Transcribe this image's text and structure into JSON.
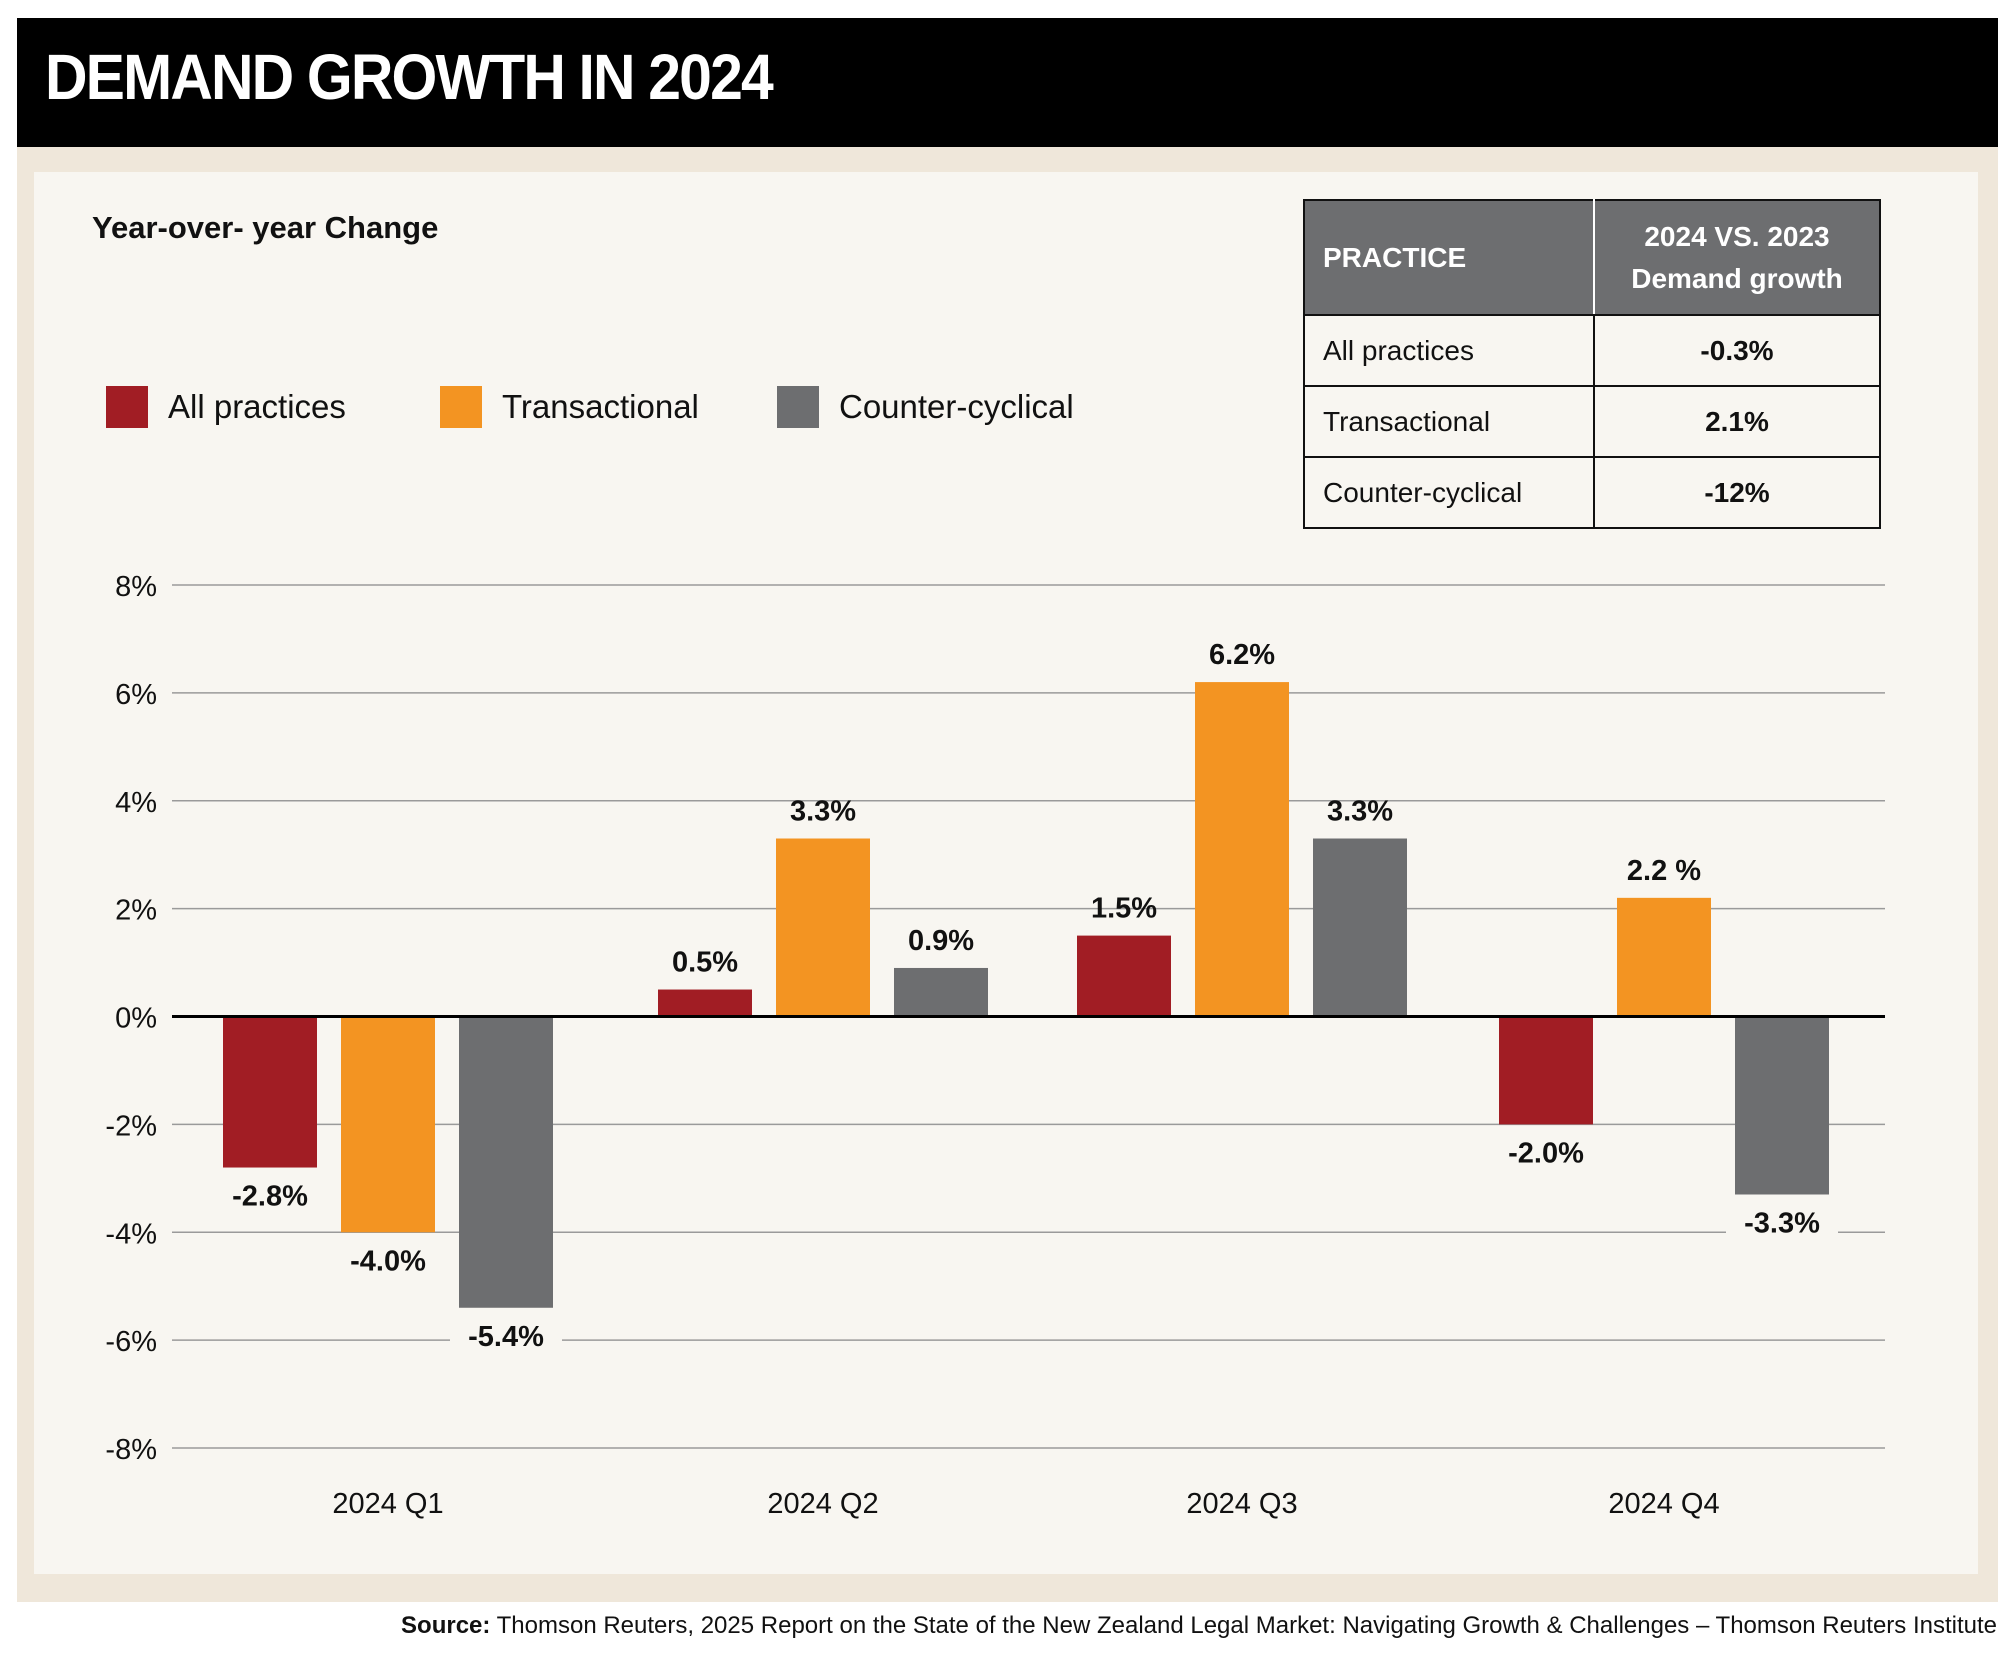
{
  "title": "DEMAND GROWTH IN 2024",
  "subtitle": "Year-over- year Change",
  "colors": {
    "all_practices": "#a11d24",
    "transactional": "#f39422",
    "counter_cyclical": "#6d6e70",
    "header_bg": "#000000",
    "panel_bg": "#f8f6f1",
    "frame_bg": "#efe7da"
  },
  "legend": [
    "All practices",
    "Transactional",
    "Counter-cyclical"
  ],
  "table": {
    "header_practice": "PRACTICE",
    "header_growth_line1": "2024 VS. 2023",
    "header_growth_line2": "Demand growth",
    "rows": [
      {
        "practice": "All practices",
        "value": "-0.3%"
      },
      {
        "practice": "Transactional",
        "value": "2.1%"
      },
      {
        "practice": "Counter-cyclical",
        "value": "-12%"
      }
    ]
  },
  "chart_data": {
    "type": "bar",
    "categories": [
      "2024 Q1",
      "2024 Q2",
      "2024 Q3",
      "2024 Q4"
    ],
    "series": [
      {
        "name": "All practices",
        "values": [
          -2.8,
          0.5,
          1.5,
          -2.0
        ],
        "labels": [
          "-2.8%",
          "0.5%",
          "1.5%",
          "-2.0%"
        ]
      },
      {
        "name": "Transactional",
        "values": [
          -4.0,
          3.3,
          6.2,
          2.2
        ],
        "labels": [
          "-4.0%",
          "3.3%",
          "6.2%",
          "2.2 %"
        ]
      },
      {
        "name": "Counter-cyclical",
        "values": [
          -5.4,
          0.9,
          3.3,
          -3.3
        ],
        "labels": [
          "-5.4%",
          "0.9%",
          "3.3%",
          "-3.3%"
        ]
      }
    ],
    "ylim": [
      -8,
      8
    ],
    "yticks": [
      8,
      6,
      4,
      2,
      0,
      -2,
      -4,
      -6,
      -8
    ],
    "ytick_labels": [
      "8%",
      "6%",
      "4%",
      "2%",
      "0%",
      "-2%",
      "-4%",
      "-6%",
      "-8%"
    ],
    "grid": true,
    "legend_position": "top-left"
  },
  "source": {
    "label": "Source:",
    "text": " Thomson Reuters, 2025 Report on the State of the New Zealand Legal Market: Navigating Growth & Challenges – Thomson Reuters Institute"
  }
}
